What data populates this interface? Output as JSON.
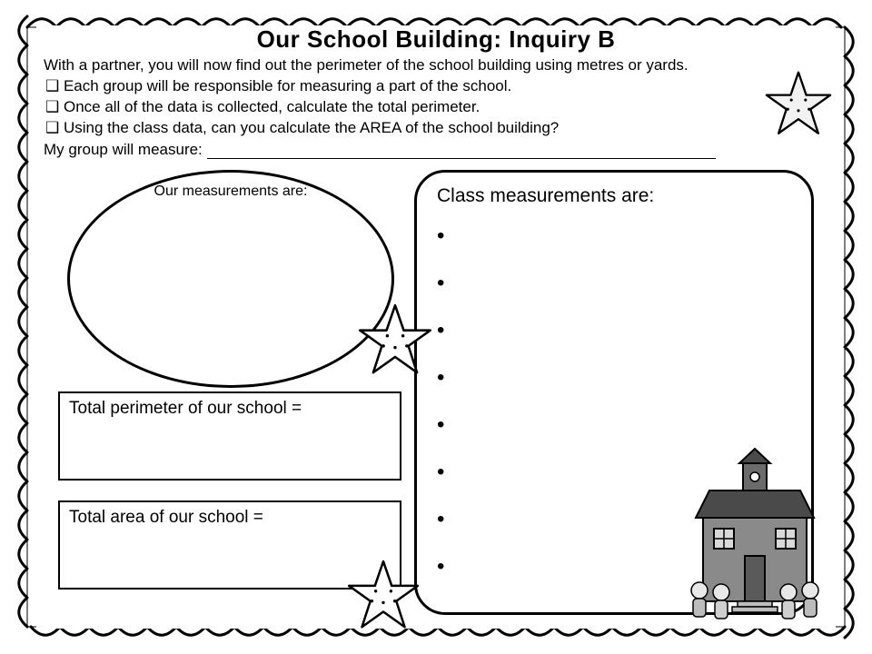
{
  "title": "Our School Building: Inquiry B",
  "intro_line": "With a partner, you will now find out the perimeter of the school building using metres or yards.",
  "bullets": [
    "Each group will be responsible for  measuring a part of the school.",
    "Once all of the data is collected, calculate the total perimeter.",
    "Using the class data, can you calculate the AREA of the school building?"
  ],
  "group_prompt": "My group will measure:",
  "oval_label": "Our measurements are:",
  "right_panel_heading": "Class measurements are:",
  "class_bullet_count": 8,
  "box1_label": "Total perimeter of our school =",
  "box2_label": "Total  area of our school =",
  "colors": {
    "stroke": "#000000",
    "background": "#ffffff",
    "school_fill": "#6b6b6b",
    "school_light": "#d9d9d9"
  },
  "border": {
    "scallop_radius": 16,
    "stroke_width": 3
  }
}
